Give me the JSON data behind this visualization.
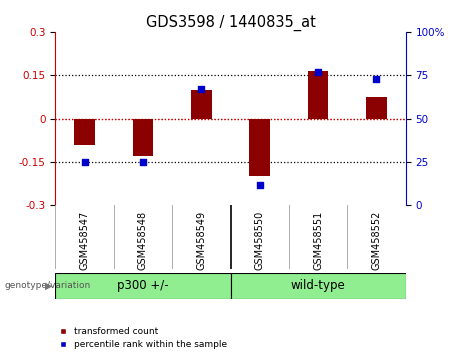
{
  "title": "GDS3598 / 1440835_at",
  "samples": [
    "GSM458547",
    "GSM458548",
    "GSM458549",
    "GSM458550",
    "GSM458551",
    "GSM458552"
  ],
  "red_values": [
    -0.09,
    -0.13,
    0.1,
    -0.2,
    0.165,
    0.075
  ],
  "blue_values_pct": [
    25,
    25,
    67,
    12,
    77,
    73
  ],
  "ylim_left": [
    -0.3,
    0.3
  ],
  "ylim_right": [
    0,
    100
  ],
  "yticks_left": [
    -0.3,
    -0.15,
    0.0,
    0.15,
    0.3
  ],
  "yticks_right": [
    0,
    25,
    50,
    75,
    100
  ],
  "group_labels": [
    "p300 +/-",
    "wild-type"
  ],
  "group_ranges": [
    [
      0,
      2
    ],
    [
      3,
      5
    ]
  ],
  "group_color": "#90EE90",
  "group_label_text": "genotype/variation",
  "bar_color": "#8B0000",
  "dot_color": "#0000CD",
  "zero_line_color": "#CC0000",
  "dotted_line_color": "#000000",
  "bg_color": "#FFFFFF",
  "plot_bg": "#FFFFFF",
  "left_axis_color": "#CC0000",
  "right_axis_color": "#0000CD",
  "legend_red_label": "transformed count",
  "legend_blue_label": "percentile rank within the sample",
  "bar_width": 0.35,
  "tick_label_fontsize": 7.5,
  "title_fontsize": 10.5,
  "sample_label_fontsize": 7,
  "group_label_fontsize": 8.5,
  "xlabels_bg": "#C8C8C8",
  "separator_color_inner": "#A0A0A0",
  "separator_color_group": "#000000"
}
